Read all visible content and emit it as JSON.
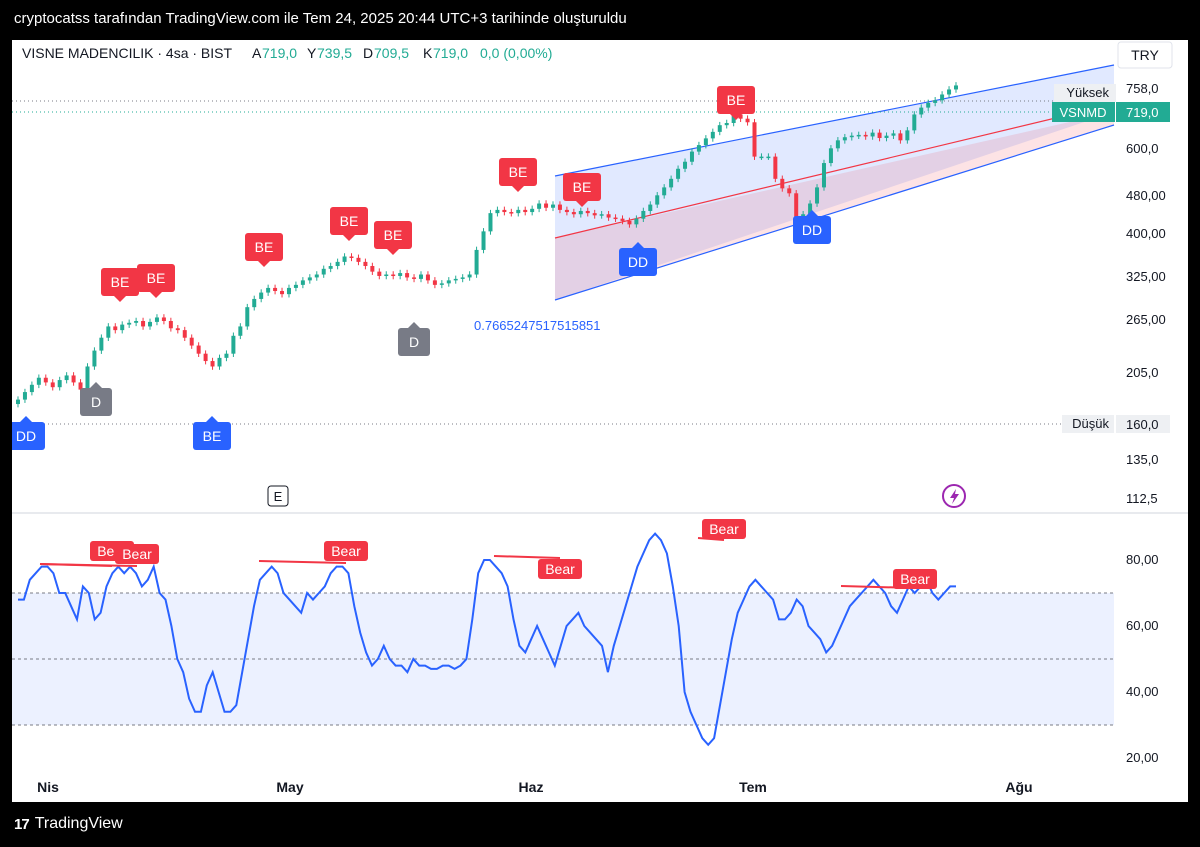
{
  "caption": "cryptocatss tarafından TradingView.com ile Tem 24, 2025 20:44 UTC+3 tarihinde oluşturuldu",
  "footer_logo": "TradingView",
  "header": {
    "symbol": "VISNE MADENCILIK · 4sa · BIST",
    "a_label": "A",
    "a_value": "719,0",
    "y_label": "Y",
    "y_value": "739,5",
    "d_label": "D",
    "d_value": "709,5",
    "k_label": "K",
    "k_value": "719,0",
    "change": "0,0 (0,00%)",
    "currency": "TRY"
  },
  "colors": {
    "up": "#22ab94",
    "down": "#f23645",
    "rsi": "#2962ff",
    "channel": "#2962ff",
    "mid": "#f23645",
    "bear": "#f23645",
    "bull_marker": "#2962ff",
    "neutral_marker": "#787b86"
  },
  "price_axis": {
    "ticks": [
      "758,0",
      "600,0",
      "480,00",
      "400,00",
      "325,00",
      "265,00",
      "205,0",
      "135,0",
      "112,5"
    ]
  },
  "rsi_axis": {
    "ticks": [
      "80,00",
      "60,00",
      "40,00",
      "20,00"
    ]
  },
  "time_axis": {
    "ticks": [
      "Nis",
      "May",
      "Haz",
      "Tem",
      "Ağu"
    ]
  },
  "labels": {
    "high_label": "Yüksek",
    "high_value": "758,0",
    "symbol_tag": "VSNMD",
    "last_value": "719,0",
    "low_label": "Düşük",
    "low_value": "160,0",
    "channel_value": "0.7665247517515851",
    "earnings": "E"
  },
  "markers": [
    {
      "text": "DD",
      "kind": "bull"
    },
    {
      "text": "D",
      "kind": "neutral"
    },
    {
      "text": "BE",
      "kind": "bear"
    },
    {
      "text": "BE",
      "kind": "bear"
    },
    {
      "text": "BE",
      "kind": "bull"
    },
    {
      "text": "BE",
      "kind": "bear"
    },
    {
      "text": "BE",
      "kind": "bear"
    },
    {
      "text": "BE",
      "kind": "bear"
    },
    {
      "text": "D",
      "kind": "neutral"
    },
    {
      "text": "BE",
      "kind": "bear"
    },
    {
      "text": "BE",
      "kind": "bear"
    },
    {
      "text": "DD",
      "kind": "bull"
    },
    {
      "text": "BE",
      "kind": "bear"
    },
    {
      "text": "DD",
      "kind": "bull"
    }
  ],
  "rsi_bear_labels": [
    "Bear",
    "Bear",
    "Bear",
    "Bear",
    "Bear",
    "Bear"
  ],
  "chart_data": [
    {
      "type": "candlestick",
      "title": "VISNE MADENCILIK · 4sa · BIST",
      "y_scale": "log",
      "ylim": [
        105,
        800
      ],
      "x_ticks": [
        "Nis",
        "May",
        "Haz",
        "Tem",
        "Ağu"
      ],
      "closes": [
        172,
        178,
        184,
        190,
        186,
        182,
        188,
        192,
        186,
        180,
        200,
        215,
        228,
        240,
        236,
        242,
        244,
        246,
        240,
        245,
        250,
        246,
        238,
        236,
        228,
        220,
        212,
        205,
        200,
        208,
        212,
        230,
        240,
        262,
        272,
        280,
        286,
        282,
        278,
        286,
        290,
        296,
        300,
        304,
        312,
        316,
        322,
        330,
        328,
        322,
        316,
        308,
        302,
        304,
        302,
        306,
        300,
        298,
        304,
        296,
        290,
        292,
        296,
        298,
        300,
        304,
        340,
        370,
        402,
        408,
        404,
        402,
        408,
        404,
        410,
        420,
        412,
        418,
        408,
        404,
        400,
        406,
        402,
        398,
        400,
        394,
        392,
        388,
        382,
        392,
        406,
        418,
        436,
        452,
        470,
        492,
        508,
        532,
        548,
        565,
        582,
        600,
        606,
        630,
        618,
        608,
        520,
        520,
        520,
        470,
        450,
        440,
        392,
        400,
        420,
        452,
        505,
        540,
        560,
        568,
        572,
        574,
        570,
        580,
        566,
        572,
        578,
        560,
        586,
        630,
        650,
        664,
        672,
        690,
        706,
        719
      ],
      "high": 739.5,
      "low": 709.5,
      "open": 719.0,
      "last": 719.0,
      "period_high": 758.0,
      "period_low": 160.0
    },
    {
      "type": "line",
      "title": "RSI",
      "ylim": [
        15,
        90
      ],
      "levels": [
        70,
        50,
        30
      ],
      "values": [
        68,
        68,
        74,
        76,
        78,
        78,
        76,
        70,
        70,
        66,
        62,
        72,
        70,
        62,
        64,
        72,
        76,
        78,
        76,
        78,
        76,
        72,
        74,
        78,
        70,
        68,
        60,
        50,
        46,
        38,
        34,
        34,
        42,
        46,
        40,
        34,
        34,
        36,
        46,
        56,
        66,
        74,
        76,
        78,
        76,
        70,
        68,
        66,
        64,
        70,
        68,
        70,
        72,
        76,
        78,
        78,
        76,
        66,
        58,
        52,
        48,
        50,
        54,
        50,
        48,
        48,
        46,
        50,
        48,
        48,
        47,
        47,
        48,
        48,
        47,
        48,
        50,
        62,
        76,
        80,
        80,
        78,
        76,
        72,
        62,
        54,
        52,
        56,
        60,
        56,
        52,
        48,
        54,
        60,
        62,
        64,
        60,
        58,
        56,
        54,
        46,
        54,
        60,
        66,
        72,
        78,
        82,
        86,
        88,
        86,
        82,
        72,
        60,
        40,
        34,
        30,
        26,
        24,
        26,
        36,
        46,
        56,
        64,
        68,
        72,
        74,
        72,
        70,
        68,
        62,
        62,
        64,
        68,
        66,
        60,
        58,
        56,
        52,
        54,
        58,
        62,
        66,
        68,
        70,
        72,
        74,
        72,
        70,
        66,
        64,
        68,
        72,
        70,
        72,
        74,
        70,
        68,
        70,
        72,
        72
      ]
    }
  ]
}
